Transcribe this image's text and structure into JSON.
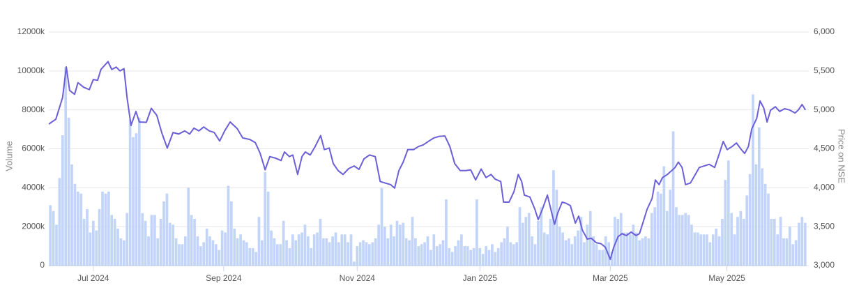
{
  "chart_data": {
    "type": "combo",
    "y_label": "Volume",
    "y2_label": "Price on NSE",
    "xlim": [
      -0.5,
      246.5
    ],
    "xticks": [
      {
        "value": 14,
        "label": "Jul 2024"
      },
      {
        "value": 56.5,
        "label": "Sep 2024"
      },
      {
        "value": 100,
        "label": "Nov 2024"
      },
      {
        "value": 140,
        "label": "Jan 2025"
      },
      {
        "value": 182.5,
        "label": "Mar 2025"
      },
      {
        "value": 220.5,
        "label": "May 2025"
      }
    ],
    "ylim": [
      0,
      12000
    ],
    "yticks": [
      0,
      {
        "value": 2000,
        "label": "2000k"
      },
      {
        "value": 4000,
        "label": "4000k"
      },
      {
        "value": 6000,
        "label": "6000k"
      },
      {
        "value": 8000,
        "label": "8000k"
      },
      {
        "value": 10000,
        "label": "10000k"
      },
      {
        "value": 12000,
        "label": "12000k"
      }
    ],
    "y2lim": [
      3000,
      6000
    ],
    "y2ticks": [
      {
        "value": 3000,
        "label": "3,000"
      },
      {
        "value": 3500,
        "label": "3,500"
      },
      {
        "value": 4000,
        "label": "4,000"
      },
      {
        "value": 4500,
        "label": "4,500"
      },
      {
        "value": 5000,
        "label": "5,000"
      },
      {
        "value": 5500,
        "label": "5,500"
      },
      {
        "value": 6000,
        "label": "6,000"
      }
    ],
    "grid": true,
    "series": [
      {
        "type": "bar",
        "axis": "y",
        "color": "#c2d5f8",
        "values": [
          3100,
          2800,
          2100,
          4500,
          6700,
          10200,
          7600,
          5200,
          4200,
          3800,
          3700,
          2400,
          2900,
          1700,
          2300,
          1800,
          2900,
          3800,
          3700,
          3800,
          2600,
          2400,
          1900,
          1400,
          1300,
          2700,
          7500,
          6600,
          6800,
          7600,
          2700,
          2300,
          1500,
          2600,
          2600,
          1400,
          2400,
          3300,
          3700,
          2200,
          2100,
          1400,
          1100,
          1100,
          1500,
          4000,
          2600,
          2400,
          1500,
          1000,
          1200,
          1900,
          1500,
          1300,
          1100,
          800,
          1800,
          1700,
          4100,
          3300,
          1900,
          1400,
          1600,
          1300,
          1200,
          900,
          900,
          700,
          2500,
          1300,
          4800,
          3800,
          1800,
          1400,
          1100,
          1100,
          2300,
          1300,
          900,
          1600,
          1300,
          1600,
          1700,
          2100,
          1500,
          900,
          1600,
          1700,
          2400,
          1400,
          1400,
          1200,
          1500,
          1700,
          1200,
          1600,
          1600,
          1200,
          1600,
          200,
          1000,
          1200,
          1300,
          1200,
          1100,
          1200,
          1400,
          2100,
          4000,
          2000,
          1400,
          2100,
          1500,
          2300,
          2100,
          2200,
          1400,
          1300,
          2500,
          1400,
          1000,
          1100,
          1200,
          1500,
          800,
          1600,
          1000,
          1100,
          1300,
          3400,
          900,
          700,
          1000,
          1300,
          1600,
          1000,
          1000,
          800,
          900,
          3400,
          900,
          600,
          1000,
          800,
          1100,
          700,
          900,
          1200,
          1400,
          2000,
          1200,
          1100,
          1200,
          3000,
          2200,
          2500,
          2700,
          1500,
          1100,
          2300,
          3000,
          1700,
          1600,
          2400,
          4900,
          3900,
          2000,
          1700,
          1300,
          1400,
          1100,
          1500,
          1800,
          2500,
          1200,
          2100,
          2800,
          1500,
          1100,
          800,
          800,
          1500,
          1200,
          700,
          2500,
          2400,
          2700,
          1700,
          1700,
          1600,
          2100,
          1700,
          1300,
          1400,
          1500,
          1400,
          2700,
          3000,
          3800,
          3700,
          5100,
          2800,
          3900,
          6900,
          3000,
          2600,
          2600,
          2700,
          2600,
          2100,
          1700,
          1700,
          1600,
          1600,
          1600,
          1200,
          1600,
          1900,
          1500,
          2400,
          4400,
          5400,
          2700,
          1600,
          2500,
          2800,
          2400,
          3600,
          4700,
          8800,
          5200,
          7100,
          5000,
          4200,
          3700,
          2400,
          2400,
          1600,
          2500,
          1400,
          1400,
          2000,
          1100,
          1300,
          2200,
          2500,
          2200
        ]
      },
      {
        "type": "line",
        "axis": "y2",
        "color": "#6a5fd6",
        "x": [
          -0.5,
          1.8,
          4,
          5.2,
          6.3,
          7.9,
          9,
          10.9,
          12.7,
          14,
          15.4,
          16.5,
          18.8,
          20,
          21.5,
          22.7,
          24,
          25,
          26.3,
          27.9,
          29,
          31.3,
          32.9,
          34.7,
          36.3,
          38.1,
          40,
          41.8,
          43.8,
          45.4,
          46.8,
          48.4,
          50,
          51.8,
          53.4,
          55.2,
          56.8,
          58.6,
          60.9,
          62.7,
          65,
          66.8,
          68.4,
          70,
          71.5,
          73.4,
          75.2,
          76.3,
          77.9,
          79,
          80.6,
          82,
          83.1,
          84.7,
          86.3,
          88.1,
          89.3,
          90.9,
          92.2,
          93.8,
          95.4,
          97.2,
          99,
          100.6,
          102.2,
          104,
          105.9,
          107.5,
          109.1,
          110.9,
          112.2,
          113.6,
          115,
          116.5,
          118.4,
          120,
          121.5,
          123.4,
          125,
          126.8,
          128.6,
          130.2,
          131.8,
          133.6,
          135.4,
          137,
          138.6,
          140.4,
          142,
          143.6,
          145,
          146.8,
          147.7,
          149.5,
          151.1,
          152.5,
          153.6,
          154.5,
          156.3,
          157.9,
          159,
          160.4,
          162,
          163.1,
          164.3,
          165.4,
          166.8,
          168.1,
          169.5,
          171.1,
          172.2,
          173.4,
          175,
          176.3,
          177.9,
          179.5,
          180.9,
          182.5,
          183.6,
          185,
          186.3,
          187.7,
          189.3,
          190.9,
          192,
          193.1,
          194.5,
          196.1,
          197.2,
          198.4,
          199.5,
          201.1,
          202.5,
          203.6,
          204.7,
          205.9,
          207,
          208.6,
          210.2,
          211.5,
          213.1,
          214.7,
          216.5,
          217.7,
          219.3,
          220.6,
          222.2,
          223.6,
          225.2,
          226.3,
          227.5,
          228.6,
          230.2,
          231.3,
          232.5,
          233.6,
          234.7,
          236.3,
          237.7,
          239.3,
          240.9,
          242.7,
          243.8,
          245,
          246.1
        ],
        "values": [
          4818,
          4880,
          5160,
          5552,
          5250,
          5200,
          5350,
          5290,
          5260,
          5390,
          5380,
          5520,
          5620,
          5520,
          5550,
          5500,
          5530,
          5160,
          4800,
          4980,
          4845,
          4840,
          5020,
          4930,
          4710,
          4510,
          4710,
          4690,
          4730,
          4690,
          4765,
          4730,
          4780,
          4730,
          4710,
          4600,
          4730,
          4845,
          4760,
          4640,
          4620,
          4580,
          4440,
          4230,
          4400,
          4380,
          4350,
          4460,
          4400,
          4420,
          4170,
          4400,
          4460,
          4420,
          4530,
          4670,
          4490,
          4510,
          4310,
          4220,
          4170,
          4245,
          4280,
          4235,
          4370,
          4420,
          4400,
          4080,
          4060,
          4040,
          3995,
          4220,
          4330,
          4490,
          4490,
          4530,
          4550,
          4600,
          4640,
          4660,
          4665,
          4530,
          4310,
          4220,
          4220,
          4230,
          4100,
          4240,
          4130,
          4170,
          4110,
          4080,
          3815,
          3815,
          3950,
          4170,
          4080,
          3905,
          3880,
          3725,
          3590,
          3725,
          3905,
          3725,
          3530,
          3680,
          3815,
          3800,
          3770,
          3545,
          3635,
          3455,
          3340,
          3350,
          3295,
          3280,
          3235,
          3080,
          3235,
          3370,
          3410,
          3385,
          3430,
          3385,
          3410,
          3545,
          3725,
          3860,
          4100,
          4040,
          4130,
          4170,
          4220,
          4260,
          4330,
          4260,
          4040,
          4060,
          4170,
          4260,
          4280,
          4300,
          4260,
          4400,
          4595,
          4490,
          4530,
          4575,
          4490,
          4440,
          4530,
          4755,
          4890,
          5115,
          5025,
          4845,
          4995,
          5040,
          4980,
          5015,
          5000,
          4960,
          5000,
          5070,
          5000
        ]
      }
    ]
  }
}
